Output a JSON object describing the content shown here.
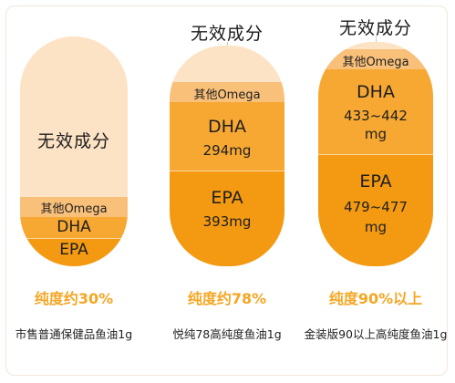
{
  "colors": {
    "invalid": "#fde3c6",
    "other_omega": "#f9c07a",
    "dha": "#f7a833",
    "epa": "#f39a12",
    "purity_text": "#f5a623"
  },
  "products": [
    {
      "invalid_label": "无效成分",
      "other_label": "其他Omega",
      "dha_label": "DHA",
      "epa_label": "EPA",
      "purity": "纯度约30%",
      "name": "市售普通保健品鱼油1g"
    },
    {
      "invalid_label": "无效成分",
      "other_label": "其他Omega",
      "dha_label": "DHA",
      "dha_amount": "294mg",
      "epa_label": "EPA",
      "epa_amount": "393mg",
      "purity": "纯度约78%",
      "name": "悦纯78高纯度鱼油1g"
    },
    {
      "invalid_label": "无效成分",
      "other_label": "其他Omega",
      "dha_label": "DHA",
      "dha_amount": "433~442",
      "dha_unit": "mg",
      "epa_label": "EPA",
      "epa_amount": "479~477",
      "epa_unit": "mg",
      "purity": "纯度90%以上",
      "name": "金装版90以上高纯度鱼油1g"
    }
  ]
}
